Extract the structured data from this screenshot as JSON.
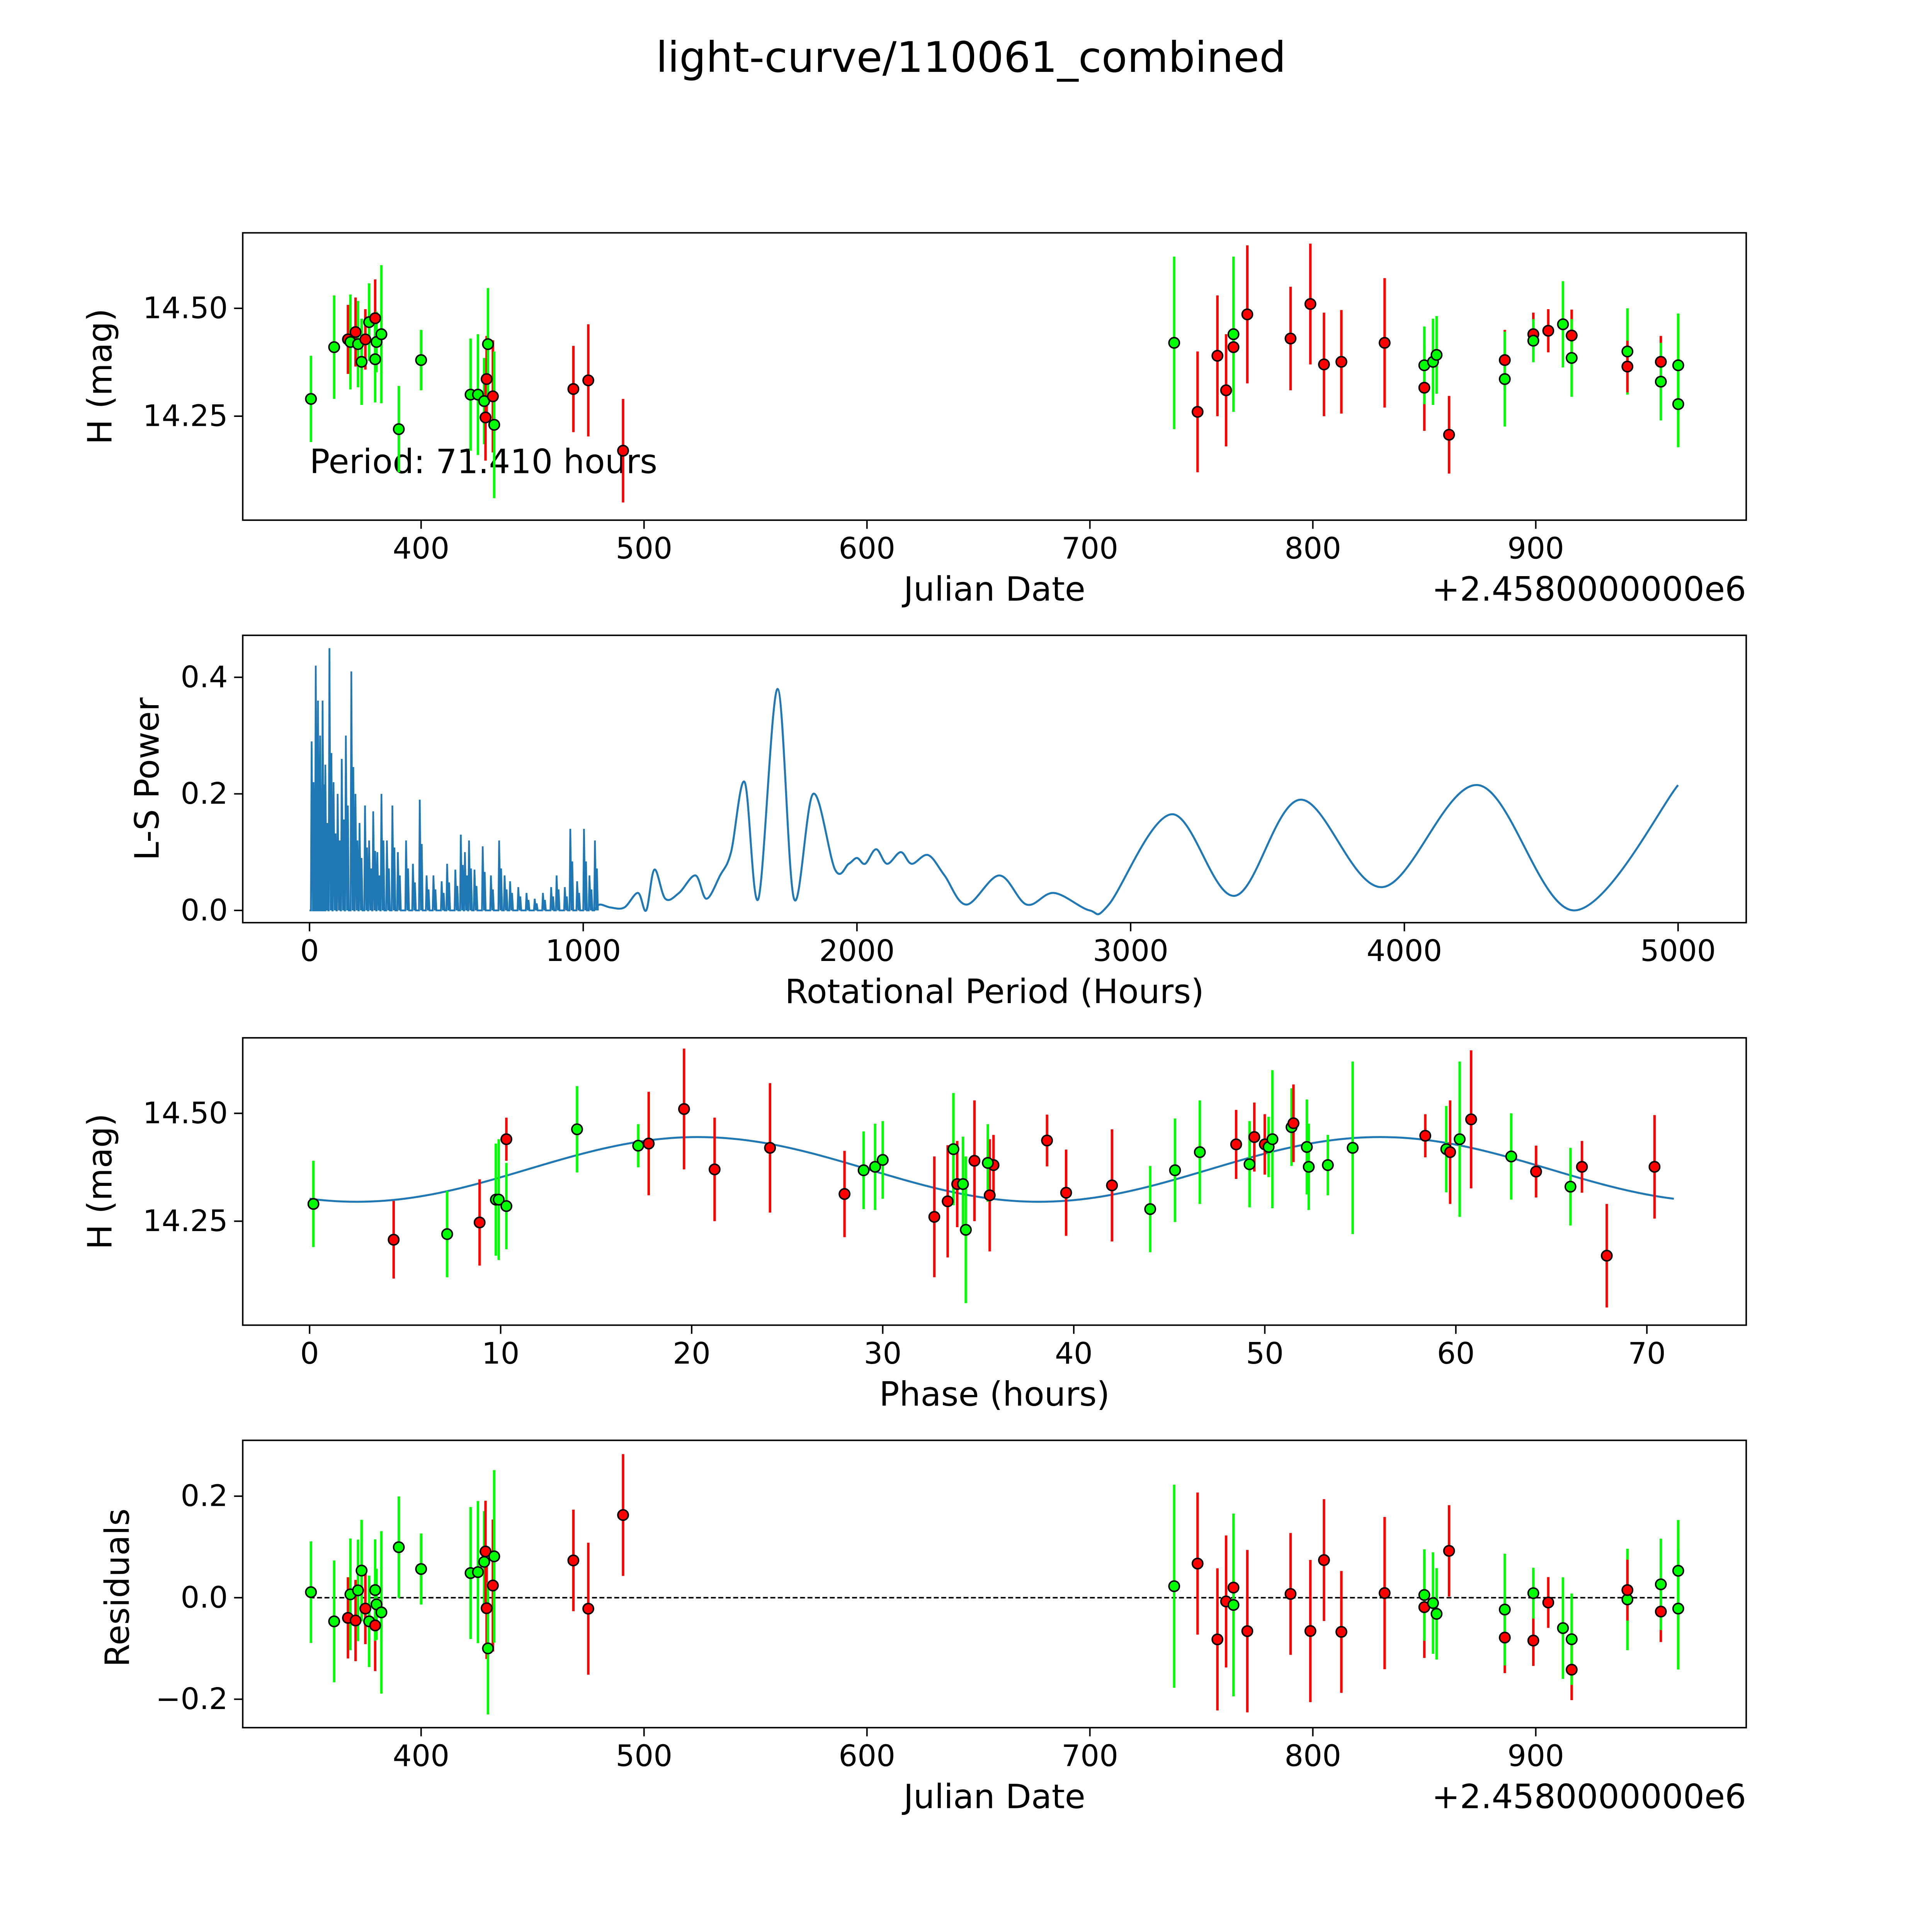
{
  "figure_title": "light-curve/110061_combined",
  "colors": {
    "green": "#00ff00",
    "red": "#ff0000",
    "model": "#1f77b4",
    "periodogram": "#1f77b4"
  },
  "chart_data": [
    {
      "id": "lightcurve",
      "type": "scatter",
      "xlabel": "Julian Date",
      "ylabel": "H (mag)",
      "x_offset_text": "+2.4580000000e6",
      "annotation": "Period: 71.410 hours",
      "xlim": [
        320,
        994.4
      ],
      "ylim": [
        14.009,
        14.675
      ],
      "xticks": [
        400,
        500,
        600,
        700,
        800,
        900
      ],
      "xtick_labels": [
        "400",
        "500",
        "600",
        "700",
        "800",
        "900"
      ],
      "yticks": [
        14.25,
        14.5
      ],
      "ytick_labels": [
        "14.25",
        "14.50"
      ]
    },
    {
      "id": "periodogram",
      "type": "line",
      "xlabel": "Rotational Period (Hours)",
      "ylabel": "L-S Power",
      "xlim": [
        -244,
        5249
      ],
      "ylim": [
        -0.021,
        0.472
      ],
      "xticks": [
        0,
        1000,
        2000,
        3000,
        4000,
        5000
      ],
      "xtick_labels": [
        "0",
        "1000",
        "2000",
        "3000",
        "4000",
        "5000"
      ],
      "yticks": [
        0,
        0.2,
        0.4
      ],
      "ytick_labels": [
        "0.0",
        "0.2",
        "0.4"
      ],
      "spikes": [
        [
          5,
          0.29
        ],
        [
          12,
          0.22
        ],
        [
          20,
          0.42
        ],
        [
          28,
          0.36
        ],
        [
          36,
          0.3
        ],
        [
          45,
          0.36
        ],
        [
          55,
          0.25
        ],
        [
          70,
          0.45
        ],
        [
          85,
          0.22
        ],
        [
          100,
          0.2
        ],
        [
          115,
          0.26
        ],
        [
          130,
          0.3
        ],
        [
          150,
          0.41
        ],
        [
          165,
          0.2
        ],
        [
          180,
          0.15
        ],
        [
          200,
          0.18
        ],
        [
          215,
          0.12
        ],
        [
          230,
          0.17
        ],
        [
          245,
          0.1
        ],
        [
          260,
          0.2
        ],
        [
          280,
          0.12
        ],
        [
          300,
          0.18
        ],
        [
          320,
          0.1
        ],
        [
          350,
          0.12
        ],
        [
          375,
          0.08
        ],
        [
          400,
          0.19
        ],
        [
          425,
          0.06
        ],
        [
          450,
          0.06
        ],
        [
          480,
          0.05
        ],
        [
          500,
          0.08
        ],
        [
          530,
          0.07
        ],
        [
          550,
          0.13
        ],
        [
          565,
          0.1
        ],
        [
          580,
          0.12
        ],
        [
          600,
          0.07
        ],
        [
          630,
          0.11
        ],
        [
          660,
          0.06
        ],
        [
          690,
          0.12
        ],
        [
          710,
          0.06
        ],
        [
          730,
          0.05
        ],
        [
          760,
          0.04
        ],
        [
          790,
          0.03
        ],
        [
          820,
          0.02
        ],
        [
          850,
          0.03
        ],
        [
          880,
          0.04
        ],
        [
          900,
          0.06
        ],
        [
          930,
          0.04
        ],
        [
          950,
          0.14
        ],
        [
          975,
          0.05
        ],
        [
          1000,
          0.14
        ],
        [
          1020,
          0.06
        ],
        [
          1040,
          0.12
        ]
      ],
      "smooth": [
        [
          1060,
          0.01
        ],
        [
          1100,
          0.005
        ],
        [
          1150,
          0.005
        ],
        [
          1200,
          0.03
        ],
        [
          1230,
          0.0
        ],
        [
          1260,
          0.07
        ],
        [
          1300,
          0.02
        ],
        [
          1350,
          0.03
        ],
        [
          1410,
          0.06
        ],
        [
          1450,
          0.02
        ],
        [
          1500,
          0.06
        ],
        [
          1540,
          0.1
        ],
        [
          1590,
          0.22
        ],
        [
          1640,
          0.02
        ],
        [
          1710,
          0.38
        ],
        [
          1770,
          0.02
        ],
        [
          1840,
          0.2
        ],
        [
          1920,
          0.07
        ],
        [
          1970,
          0.08
        ],
        [
          2000,
          0.09
        ],
        [
          2030,
          0.08
        ],
        [
          2070,
          0.105
        ],
        [
          2110,
          0.08
        ],
        [
          2160,
          0.1
        ],
        [
          2200,
          0.08
        ],
        [
          2260,
          0.095
        ],
        [
          2320,
          0.06
        ],
        [
          2400,
          0.01
        ],
        [
          2520,
          0.06
        ],
        [
          2620,
          0.01
        ],
        [
          2720,
          0.03
        ],
        [
          2850,
          0.0
        ],
        [
          2920,
          0.01
        ],
        [
          3150,
          0.165
        ],
        [
          3380,
          0.025
        ],
        [
          3620,
          0.19
        ],
        [
          3920,
          0.04
        ],
        [
          4270,
          0.215
        ],
        [
          4620,
          0.0
        ],
        [
          5000,
          0.215
        ]
      ]
    },
    {
      "id": "phased",
      "type": "scatter",
      "xlabel": "Phase (hours)",
      "ylabel": "H (mag)",
      "xlim": [
        -3.5,
        75.2
      ],
      "ylim": [
        14.009,
        14.675
      ],
      "xticks": [
        0,
        10,
        20,
        30,
        40,
        50,
        60,
        70
      ],
      "xtick_labels": [
        "0",
        "10",
        "20",
        "30",
        "40",
        "50",
        "60",
        "70"
      ],
      "yticks": [
        14.25,
        14.5
      ],
      "ytick_labels": [
        "14.25",
        "14.50"
      ],
      "model": {
        "period_hours": 71.41,
        "mean": 14.37,
        "amplitude": 0.075,
        "cycles_per_period": 2,
        "phase_shift_hours": 11.4
      }
    },
    {
      "id": "residuals",
      "type": "scatter",
      "xlabel": "Julian Date",
      "ylabel": "Residuals",
      "x_offset_text": "+2.4580000000e6",
      "xlim": [
        320,
        994.4
      ],
      "ylim": [
        -0.256,
        0.31
      ],
      "xticks": [
        400,
        500,
        600,
        700,
        800,
        900
      ],
      "xtick_labels": [
        "400",
        "500",
        "600",
        "700",
        "800",
        "900"
      ],
      "yticks": [
        -0.2,
        0,
        0.2
      ],
      "ytick_labels": [
        "−0.2",
        "0.0",
        "0.2"
      ]
    }
  ],
  "observations": [
    {
      "jd": 350.6,
      "mag": 14.29,
      "err": 0.1,
      "color": "green",
      "phase": 0.2
    },
    {
      "jd": 361.0,
      "mag": 14.41,
      "err": 0.12,
      "color": "green",
      "phase": 46.6
    },
    {
      "jd": 367.2,
      "mag": 14.428,
      "err": 0.08,
      "color": "red",
      "phase": 48.5
    },
    {
      "jd": 368.3,
      "mag": 14.422,
      "err": 0.11,
      "color": "green",
      "phase": 52.2
    },
    {
      "jd": 370.6,
      "mag": 14.445,
      "err": 0.08,
      "color": "red",
      "phase": 49.45
    },
    {
      "jd": 371.7,
      "mag": 14.417,
      "err": 0.1,
      "color": "green",
      "phase": 59.5
    },
    {
      "jd": 373.3,
      "mag": 14.376,
      "err": 0.1,
      "color": "green",
      "phase": 52.3
    },
    {
      "jd": 375.0,
      "mag": 14.428,
      "err": 0.07,
      "color": "red",
      "phase": 50.0
    },
    {
      "jd": 376.7,
      "mag": 14.468,
      "err": 0.09,
      "color": "green",
      "phase": 51.4
    },
    {
      "jd": 379.4,
      "mag": 14.477,
      "err": 0.09,
      "color": "red",
      "phase": 51.5
    },
    {
      "jd": 379.4,
      "mag": 14.382,
      "err": 0.1,
      "color": "green",
      "phase": 49.2
    },
    {
      "jd": 380.0,
      "mag": 14.422,
      "err": 0.07,
      "color": "green",
      "phase": 50.2
    },
    {
      "jd": 382.2,
      "mag": 14.44,
      "err": 0.16,
      "color": "green",
      "phase": 50.4
    },
    {
      "jd": 390.0,
      "mag": 14.22,
      "err": 0.1,
      "color": "green",
      "phase": 7.2
    },
    {
      "jd": 400.0,
      "mag": 14.38,
      "err": 0.07,
      "color": "green",
      "phase": 53.3
    },
    {
      "jd": 422.2,
      "mag": 14.3,
      "err": 0.13,
      "color": "green",
      "phase": 9.75
    },
    {
      "jd": 425.5,
      "mag": 14.3,
      "err": 0.14,
      "color": "green",
      "phase": 9.9
    },
    {
      "jd": 428.3,
      "mag": 14.285,
      "err": 0.1,
      "color": "green",
      "phase": 10.3
    },
    {
      "jd": 428.9,
      "mag": 14.247,
      "err": 0.1,
      "color": "red",
      "phase": 8.9
    },
    {
      "jd": 429.4,
      "mag": 14.336,
      "err": 0.1,
      "color": "red",
      "phase": 33.9
    },
    {
      "jd": 430.0,
      "mag": 14.417,
      "err": 0.13,
      "color": "green",
      "phase": 33.7
    },
    {
      "jd": 432.2,
      "mag": 14.296,
      "err": 0.13,
      "color": "red",
      "phase": 33.4
    },
    {
      "jd": 432.8,
      "mag": 14.23,
      "err": 0.17,
      "color": "green",
      "phase": 34.35
    },
    {
      "jd": 468.3,
      "mag": 14.313,
      "err": 0.1,
      "color": "red",
      "phase": 28.0
    },
    {
      "jd": 475.0,
      "mag": 14.333,
      "err": 0.13,
      "color": "red",
      "phase": 42.0
    },
    {
      "jd": 490.6,
      "mag": 14.17,
      "err": 0.12,
      "color": "red",
      "phase": 67.9
    },
    {
      "jd": 737.8,
      "mag": 14.42,
      "err": 0.2,
      "color": "green",
      "phase": 54.6
    },
    {
      "jd": 748.3,
      "mag": 14.26,
      "err": 0.14,
      "color": "red",
      "phase": 32.7
    },
    {
      "jd": 757.2,
      "mag": 14.39,
      "err": 0.14,
      "color": "red",
      "phase": 34.8
    },
    {
      "jd": 761.1,
      "mag": 14.31,
      "err": 0.13,
      "color": "red",
      "phase": 35.6
    },
    {
      "jd": 764.4,
      "mag": 14.41,
      "err": 0.12,
      "color": "red",
      "phase": 59.7
    },
    {
      "jd": 764.4,
      "mag": 14.44,
      "err": 0.18,
      "color": "green",
      "phase": 60.2
    },
    {
      "jd": 770.6,
      "mag": 14.486,
      "err": 0.16,
      "color": "red",
      "phase": 60.8
    },
    {
      "jd": 790.0,
      "mag": 14.43,
      "err": 0.12,
      "color": "red",
      "phase": 17.75
    },
    {
      "jd": 798.9,
      "mag": 14.51,
      "err": 0.14,
      "color": "red",
      "phase": 19.6
    },
    {
      "jd": 805.0,
      "mag": 14.37,
      "err": 0.12,
      "color": "red",
      "phase": 21.2
    },
    {
      "jd": 812.8,
      "mag": 14.376,
      "err": 0.12,
      "color": "red",
      "phase": 70.4
    },
    {
      "jd": 832.2,
      "mag": 14.42,
      "err": 0.15,
      "color": "red",
      "phase": 24.1
    },
    {
      "jd": 850.0,
      "mag": 14.316,
      "err": 0.1,
      "color": "red",
      "phase": 39.6
    },
    {
      "jd": 850.0,
      "mag": 14.368,
      "err": 0.09,
      "color": "green",
      "phase": 29.0
    },
    {
      "jd": 853.9,
      "mag": 14.376,
      "err": 0.1,
      "color": "green",
      "phase": 29.6
    },
    {
      "jd": 855.5,
      "mag": 14.392,
      "err": 0.09,
      "color": "green",
      "phase": 30.0
    },
    {
      "jd": 861.1,
      "mag": 14.207,
      "err": 0.09,
      "color": "red",
      "phase": 4.4
    },
    {
      "jd": 886.1,
      "mag": 14.38,
      "err": 0.07,
      "color": "red",
      "phase": 35.8
    },
    {
      "jd": 886.1,
      "mag": 14.336,
      "err": 0.11,
      "color": "green",
      "phase": 34.2
    },
    {
      "jd": 898.9,
      "mag": 14.44,
      "err": 0.05,
      "color": "red",
      "phase": 10.3
    },
    {
      "jd": 898.9,
      "mag": 14.425,
      "err": 0.05,
      "color": "green",
      "phase": 17.2
    },
    {
      "jd": 905.6,
      "mag": 14.448,
      "err": 0.05,
      "color": "red",
      "phase": 58.4
    },
    {
      "jd": 912.2,
      "mag": 14.463,
      "err": 0.1,
      "color": "green",
      "phase": 14.0
    },
    {
      "jd": 916.1,
      "mag": 14.437,
      "err": 0.06,
      "color": "red",
      "phase": 38.6
    },
    {
      "jd": 916.1,
      "mag": 14.385,
      "err": 0.09,
      "color": "green",
      "phase": 35.5
    },
    {
      "jd": 941.1,
      "mag": 14.4,
      "err": 0.1,
      "color": "green",
      "phase": 62.9
    },
    {
      "jd": 941.1,
      "mag": 14.365,
      "err": 0.06,
      "color": "red",
      "phase": 64.2
    },
    {
      "jd": 956.1,
      "mag": 14.376,
      "err": 0.06,
      "color": "red",
      "phase": 66.6
    },
    {
      "jd": 956.1,
      "mag": 14.33,
      "err": 0.09,
      "color": "green",
      "phase": 66.0
    },
    {
      "jd": 963.9,
      "mag": 14.368,
      "err": 0.12,
      "color": "green",
      "phase": 45.3
    },
    {
      "jd": 963.9,
      "mag": 14.278,
      "err": 0.1,
      "color": "green",
      "phase": 44.0
    }
  ]
}
